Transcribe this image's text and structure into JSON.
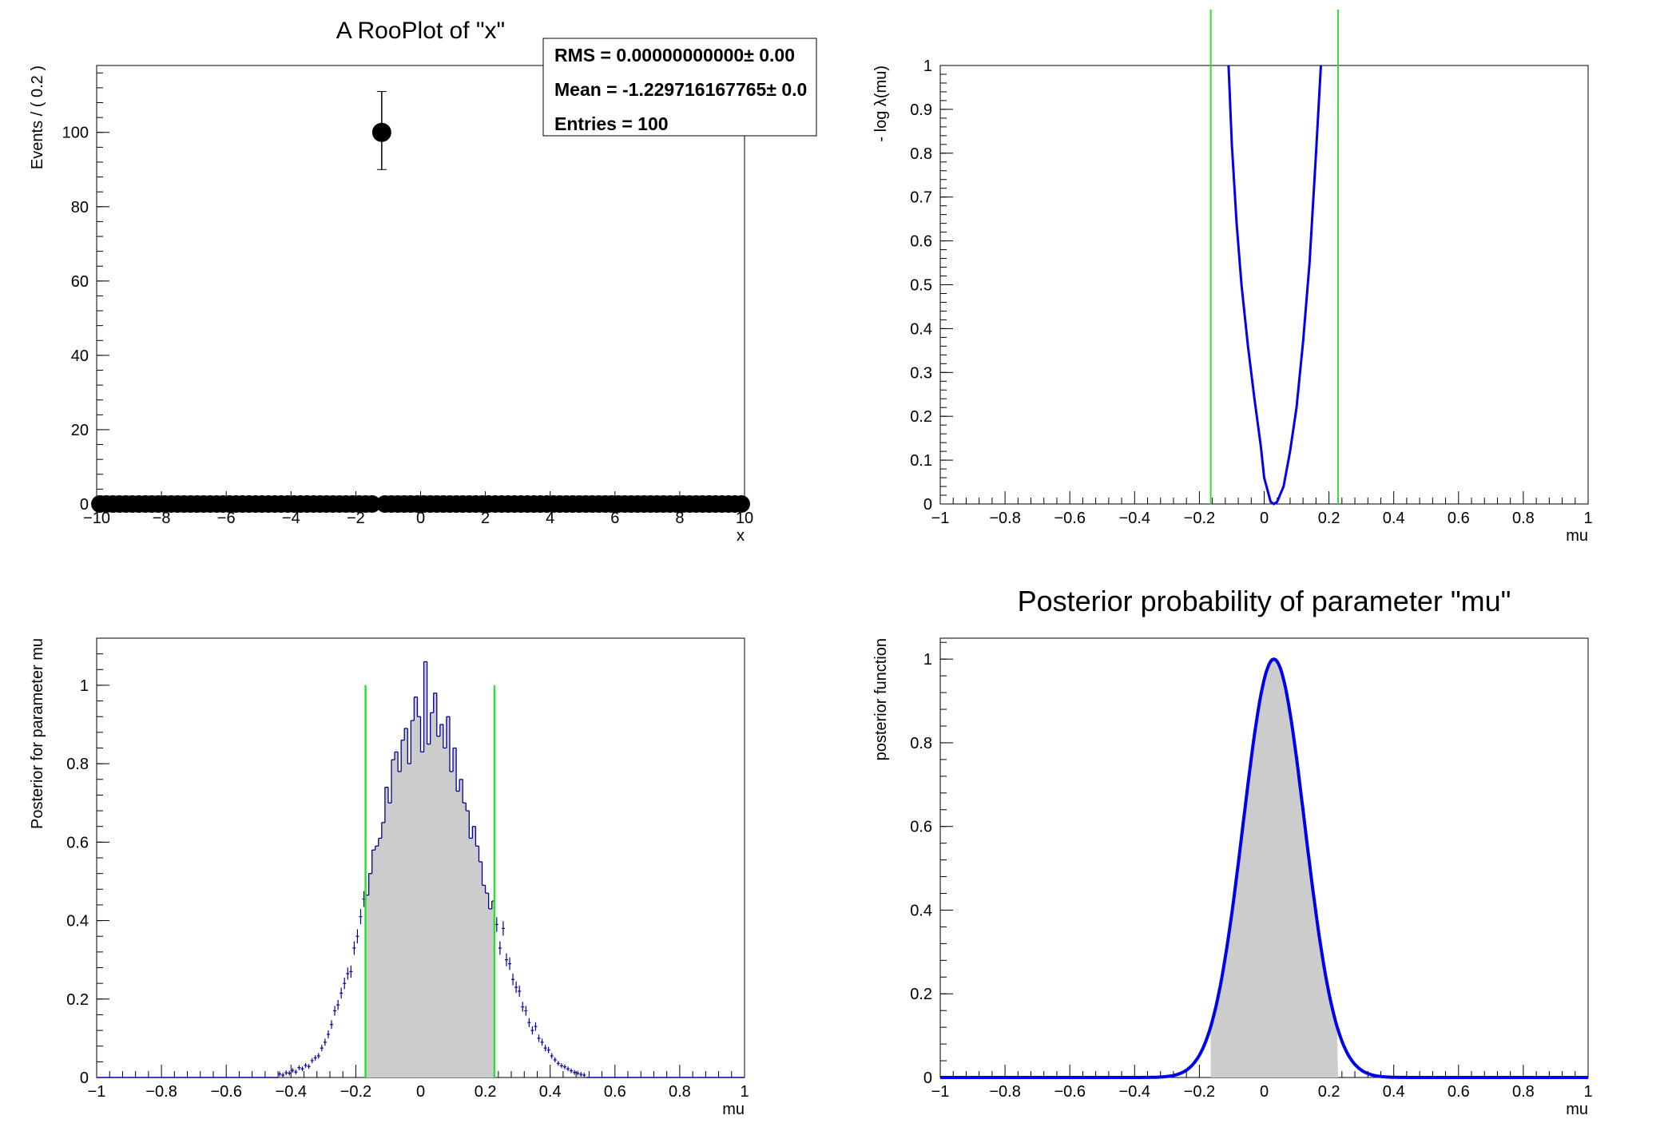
{
  "colors": {
    "frame": "#000000",
    "curve_blue": "#0000ee",
    "hist_navy": "#00009a",
    "interval_green": "#33dd33",
    "fill_grey": "#cccccc",
    "background": "#ffffff"
  },
  "chart_data": [
    {
      "id": "rooplot-x",
      "type": "scatter",
      "title": "A RooPlot of \"x\"",
      "xlabel": "x",
      "ylabel": "Events / ( 0.2 )",
      "xlim": [
        -10,
        10
      ],
      "ylim": [
        0,
        118
      ],
      "xticks": [
        -10,
        -8,
        -6,
        -4,
        -2,
        0,
        2,
        4,
        6,
        8,
        10
      ],
      "yticks": [
        0,
        20,
        40,
        60,
        80,
        100
      ],
      "bin_width": 0.2,
      "peak": {
        "x": -1.2,
        "y": 100,
        "err_low": 90,
        "err_high": 111
      },
      "zero_bins_note": "all other bins have 0 events",
      "stats_box": {
        "lines": [
          "RMS =  0.00000000000± 0.00",
          "Mean = -1.229716167765± 0.0",
          "Entries =  100"
        ]
      }
    },
    {
      "id": "profile-likelihood",
      "type": "line",
      "title": "",
      "xlabel": "mu",
      "ylabel": "- log λ(mu)",
      "xlim": [
        -1,
        1
      ],
      "ylim": [
        0,
        1
      ],
      "xticks": [
        -1,
        -0.8,
        -0.6,
        -0.4,
        -0.2,
        0,
        0.2,
        0.4,
        0.6,
        0.8,
        1
      ],
      "yticks": [
        0,
        0.1,
        0.2,
        0.3,
        0.4,
        0.5,
        0.6,
        0.7,
        0.8,
        0.9,
        1
      ],
      "interval_lines": [
        -0.165,
        0.228
      ],
      "series": [
        {
          "x": [
            -0.11,
            -0.1,
            -0.085,
            -0.07,
            -0.05,
            -0.03,
            -0.01,
            0.0,
            0.02,
            0.03,
            0.04,
            0.06,
            0.08,
            0.1,
            0.12,
            0.14,
            0.16,
            0.175
          ],
          "y": [
            1.0,
            0.82,
            0.64,
            0.5,
            0.36,
            0.24,
            0.13,
            0.06,
            0.005,
            0.0,
            0.005,
            0.04,
            0.12,
            0.22,
            0.37,
            0.55,
            0.8,
            1.0
          ]
        }
      ]
    },
    {
      "id": "mcmc-posterior-hist",
      "type": "bar",
      "title": "",
      "xlabel": "mu",
      "ylabel": "Posterior for parameter mu",
      "xlim": [
        -1,
        1
      ],
      "ylim": [
        0,
        1.12
      ],
      "xticks": [
        -1,
        -0.8,
        -0.6,
        -0.4,
        -0.2,
        0,
        0.2,
        0.4,
        0.6,
        0.8,
        1
      ],
      "yticks": [
        0,
        0.2,
        0.4,
        0.6,
        0.8,
        1
      ],
      "interval_lines": [
        -0.17,
        0.228
      ],
      "interval_line_height": 1.0,
      "bin_width": 0.01,
      "center_ref": 0.03,
      "sigma_ref": 0.105,
      "bin_values": [
        0.009,
        0.006,
        0.012,
        0.011,
        0.018,
        0.014,
        0.025,
        0.022,
        0.031,
        0.028,
        0.043,
        0.05,
        0.055,
        0.075,
        0.09,
        0.11,
        0.135,
        0.17,
        0.185,
        0.215,
        0.24,
        0.265,
        0.27,
        0.33,
        0.36,
        0.41,
        0.455,
        0.465,
        0.52,
        0.58,
        0.59,
        0.61,
        0.65,
        0.74,
        0.7,
        0.81,
        0.83,
        0.78,
        0.86,
        0.89,
        0.8,
        0.91,
        0.97,
        0.92,
        0.83,
        1.06,
        0.85,
        0.93,
        0.98,
        0.87,
        0.9,
        0.84,
        0.92,
        0.78,
        0.84,
        0.73,
        0.76,
        0.7,
        0.68,
        0.61,
        0.64,
        0.59,
        0.55,
        0.49,
        0.47,
        0.43,
        0.45,
        0.39,
        0.33,
        0.38,
        0.3,
        0.29,
        0.25,
        0.23,
        0.22,
        0.18,
        0.17,
        0.14,
        0.12,
        0.13,
        0.1,
        0.09,
        0.075,
        0.07,
        0.055,
        0.045,
        0.036,
        0.03,
        0.027,
        0.022,
        0.017,
        0.013,
        0.011,
        0.008,
        0.006
      ]
    },
    {
      "id": "posterior-function",
      "type": "area",
      "title": "Posterior probability of parameter \"mu\"",
      "xlabel": "mu",
      "ylabel": "posterior function",
      "xlim": [
        -1,
        1
      ],
      "ylim": [
        0,
        1.05
      ],
      "xticks": [
        -1,
        -0.8,
        -0.6,
        -0.4,
        -0.2,
        0,
        0.2,
        0.4,
        0.6,
        0.8,
        1
      ],
      "yticks": [
        0,
        0.2,
        0.4,
        0.6,
        0.8,
        1
      ],
      "peak_x": 0.03,
      "sigma": 0.095,
      "shade_range": [
        -0.165,
        0.228
      ]
    }
  ]
}
